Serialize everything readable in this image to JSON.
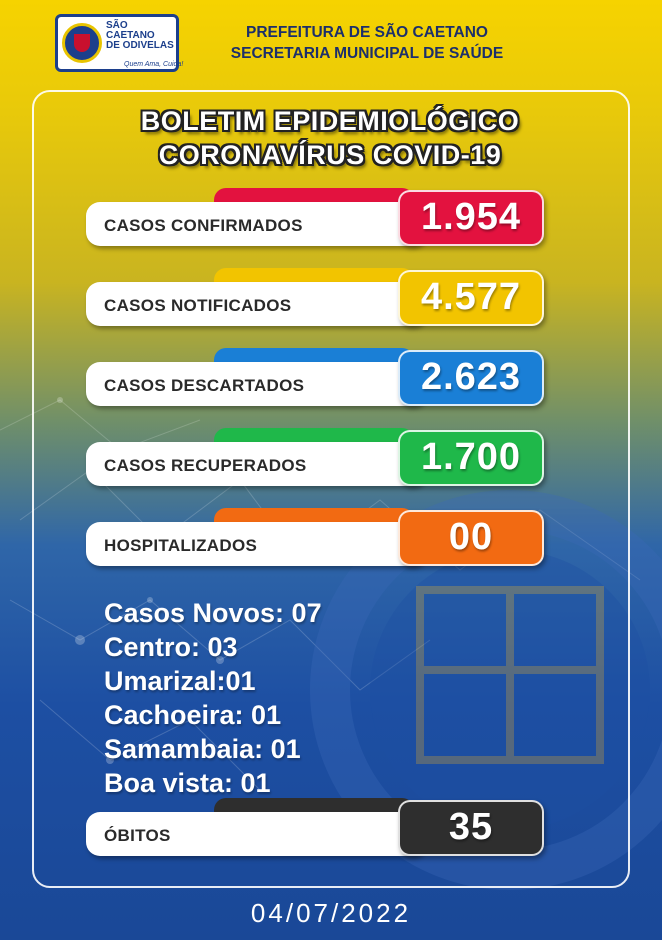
{
  "header": {
    "logo": {
      "line1": "SÃO",
      "line2": "CAETANO",
      "line3": "DE ODIVELAS",
      "slogan": "Quem Ama, Cuida!"
    },
    "line1": "PREFEITURA DE SÃO CAETANO",
    "line2": "SECRETARIA MUNICIPAL DE SAÚDE"
  },
  "bulletin": {
    "title_line1": "BOLETIM EPIDEMIOLÓGICO",
    "title_line2": "CORONAVÍRUS COVID-19"
  },
  "stats": {
    "confirmed": {
      "label": "CASOS CONFIRMADOS",
      "value": "1.954",
      "color": "#e3123f"
    },
    "notified": {
      "label": "CASOS NOTIFICADOS",
      "value": "4.577",
      "color": "#f2c400"
    },
    "discarded": {
      "label": "CASOS DESCARTADOS",
      "value": "2.623",
      "color": "#1a7fd6"
    },
    "recovered": {
      "label": "CASOS RECUPERADOS",
      "value": "1.700",
      "color": "#1fb84a"
    },
    "hospitalized": {
      "label": "HOSPITALIZADOS",
      "value": "00",
      "color": "#f26a12"
    },
    "deaths": {
      "label": "ÓBITOS",
      "value": "35",
      "color": "#2e2e2e"
    }
  },
  "new_cases": {
    "total": "Casos Novos: 07",
    "centro": "Centro: 03",
    "umarizal": "Umarizal:01",
    "cachoeira": "Cachoeira: 01",
    "samambaia": "Samambaia: 01",
    "boa_vista": "Boa vista: 01"
  },
  "date": "04/07/2022"
}
